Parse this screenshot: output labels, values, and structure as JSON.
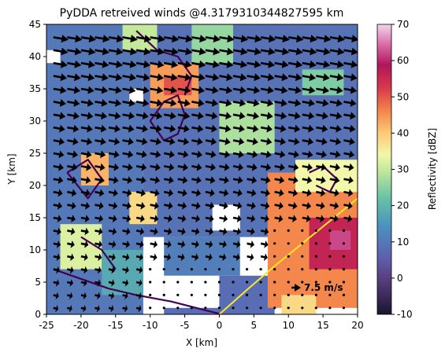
{
  "chart_data": {
    "type": "heatmap",
    "title": "PyDDA retreived winds @4.3179310344827595 km",
    "xlabel": "X [km]",
    "ylabel": "Y [km]",
    "xlim": [
      -25,
      20
    ],
    "ylim": [
      0,
      45
    ],
    "xticks": [
      "-25",
      "-20",
      "-15",
      "-10",
      "-5",
      "0",
      "5",
      "10",
      "15",
      "20"
    ],
    "yticks": [
      "0",
      "5",
      "10",
      "15",
      "20",
      "25",
      "30",
      "35",
      "40",
      "45"
    ],
    "colorbar": {
      "label": "Reflectivity [dBZ]",
      "range": [
        -10,
        70
      ],
      "ticks": [
        "-10",
        "0",
        "10",
        "20",
        "30",
        "40",
        "50",
        "60",
        "70"
      ],
      "colormap": "Spectral_r"
    },
    "quiver_key": {
      "label": "7.5 m/s",
      "value": 7.5,
      "position": "lower-right"
    },
    "reflectivity_cells": [
      {
        "x": [
          -25,
          -11
        ],
        "y": [
          0,
          45
        ],
        "dbz": 10
      },
      {
        "x": [
          -11,
          20
        ],
        "y": [
          12,
          45
        ],
        "dbz": 9
      },
      {
        "x": [
          -10,
          -3
        ],
        "y": [
          32,
          39
        ],
        "dbz": 44
      },
      {
        "x": [
          -8,
          -4
        ],
        "y": [
          34,
          37
        ],
        "dbz": 50
      },
      {
        "x": [
          -20,
          -16
        ],
        "y": [
          20,
          25
        ],
        "dbz": 42
      },
      {
        "x": [
          -13,
          -9
        ],
        "y": [
          14,
          19
        ],
        "dbz": 38
      },
      {
        "x": [
          -14,
          -9
        ],
        "y": [
          41,
          45
        ],
        "dbz": 30
      },
      {
        "x": [
          -4,
          2
        ],
        "y": [
          39,
          45
        ],
        "dbz": 26
      },
      {
        "x": [
          0,
          8
        ],
        "y": [
          25,
          33
        ],
        "dbz": 28
      },
      {
        "x": [
          12,
          18
        ],
        "y": [
          34,
          38
        ],
        "dbz": 24
      },
      {
        "x": [
          -23,
          -17
        ],
        "y": [
          7,
          14
        ],
        "dbz": 32
      },
      {
        "x": [
          -17,
          -11
        ],
        "y": [
          3,
          10
        ],
        "dbz": 18
      },
      {
        "x": [
          -8,
          3
        ],
        "y": [
          6,
          12
        ],
        "dbz": 11
      },
      {
        "x": [
          -8,
          8
        ],
        "y": [
          0,
          6
        ],
        "dbz": 8
      },
      {
        "x": [
          7,
          20
        ],
        "y": [
          1,
          22
        ],
        "dbz": 46
      },
      {
        "x": [
          13,
          20
        ],
        "y": [
          7,
          15
        ],
        "dbz": 56
      },
      {
        "x": [
          16,
          19
        ],
        "y": [
          10,
          13
        ],
        "dbz": 62
      },
      {
        "x": [
          9,
          14
        ],
        "y": [
          0,
          3
        ],
        "dbz": 38
      },
      {
        "x": [
          11,
          20
        ],
        "y": [
          19,
          24
        ],
        "dbz": 34
      }
    ],
    "missing_regions": [
      {
        "x": [
          -1,
          3
        ],
        "y": [
          13,
          17
        ]
      },
      {
        "x": [
          -8,
          0
        ],
        "y": [
          1,
          6
        ]
      },
      {
        "x": [
          -25,
          -23
        ],
        "y": [
          39,
          41
        ]
      },
      {
        "x": [
          -13,
          -11
        ],
        "y": [
          33,
          35
        ]
      }
    ],
    "wind_field": {
      "grid_x": [
        -24,
        -22,
        -20,
        -18,
        -16,
        -14,
        -12,
        -10,
        -8,
        -6,
        -4,
        -2,
        0,
        2,
        4,
        6,
        8,
        10,
        12,
        14,
        16,
        18
      ],
      "grid_y": [
        1,
        3,
        5,
        7,
        9,
        11,
        13,
        15,
        17,
        19,
        21,
        23,
        25,
        27,
        29,
        31,
        33,
        35,
        37,
        39,
        41,
        43
      ],
      "u_north": 12,
      "v_north": -2,
      "u_south": 4,
      "v_south": -1,
      "calm_below_km": 9,
      "units": "m/s"
    },
    "series": [
      {
        "type": "contour",
        "color": "#440154",
        "lines": [
          {
            "x": [
              -24,
              -20,
              -16,
              -12,
              -7,
              -3,
              0
            ],
            "y": [
              7,
              5.5,
              4,
              3,
              2,
              0.9,
              0.1
            ]
          },
          {
            "x": [
              -10,
              -8,
              -6,
              -5,
              -6,
              -8,
              -10
            ],
            "y": [
              30,
              33,
              34,
              31,
              28,
              27,
              30
            ]
          },
          {
            "x": [
              -12,
              -9,
              -6,
              -4,
              -5
            ],
            "y": [
              44,
              41,
              40,
              37,
              34
            ]
          },
          {
            "x": [
              -22,
              -19,
              -17,
              -19,
              -22
            ],
            "y": [
              22,
              24,
              21,
              18,
              22
            ]
          },
          {
            "x": [
              13,
              15,
              17,
              16,
              14
            ],
            "y": [
              22,
              23,
              21,
              19,
              20
            ]
          },
          {
            "x": [
              -20,
              -17,
              -15
            ],
            "y": [
              12,
              10,
              7
            ]
          }
        ]
      },
      {
        "type": "range-ring",
        "color": "#fde725",
        "lines": [
          {
            "x": [
              0,
              4,
              8,
              12,
              16,
              20
            ],
            "y": [
              0,
              3.8,
              7.5,
              11,
              14.5,
              18
            ]
          }
        ]
      }
    ]
  }
}
